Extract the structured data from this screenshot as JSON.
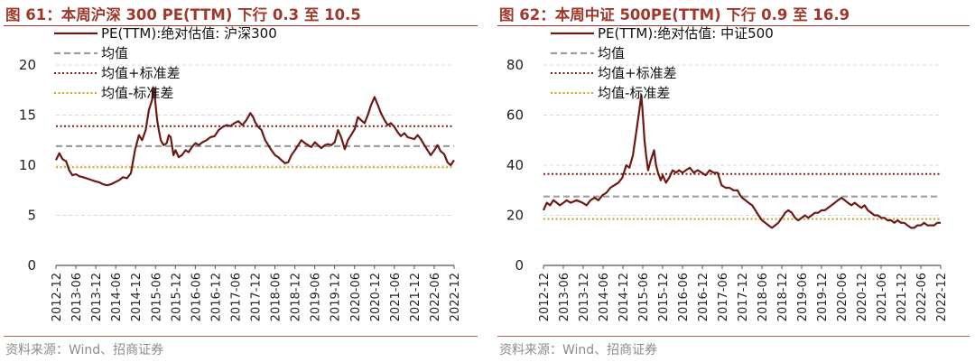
{
  "colors": {
    "title": "#a0392c",
    "pe_line": "#6b1a14",
    "mean": "#9e9e9e",
    "mean_plus": "#7b1e18",
    "mean_minus": "#c9a227",
    "source": "#8c8c8c"
  },
  "panels": [
    {
      "title": "图 61：本周沪深 300 PE(TTM) 下行 0.3 至 10.5",
      "source": "资料来源：Wind、招商证券"
    },
    {
      "title": "图 62：本周中证 500PE(TTM) 下行 0.9 至 16.9",
      "source": "资料来源：Wind、招商证券"
    }
  ],
  "chart_data": [
    {
      "type": "line",
      "title": "图 61：本周沪深 300 PE(TTM) 下行 0.3 至 10.5",
      "xlabel": "",
      "ylabel": "",
      "x_tick_labels": [
        "2012-12",
        "2013-06",
        "2013-12",
        "2014-06",
        "2014-12",
        "2015-06",
        "2015-12",
        "2016-06",
        "2016-12",
        "2017-06",
        "2017-12",
        "2018-06",
        "2018-12",
        "2019-06",
        "2019-12",
        "2020-06",
        "2020-12",
        "2021-06",
        "2021-12",
        "2022-06",
        "2022-12"
      ],
      "y_ticks": [
        0,
        5,
        10,
        15,
        20
      ],
      "ylim": [
        0,
        20
      ],
      "xlim": [
        2012.917,
        2022.917
      ],
      "grid": "horizontal dashed",
      "legend_position": "top",
      "series": [
        {
          "name": "PE(TTM):绝对估值: 沪深300",
          "style": "solid",
          "x": [
            2012.917,
            2013.0,
            2013.083,
            2013.17,
            2013.25,
            2013.33,
            2013.42,
            2013.5,
            2013.6,
            2013.75,
            2013.9,
            2014.0,
            2014.1,
            2014.2,
            2014.3,
            2014.4,
            2014.5,
            2014.6,
            2014.7,
            2014.8,
            2014.9,
            2015.0,
            2015.08,
            2015.17,
            2015.25,
            2015.33,
            2015.38,
            2015.42,
            2015.46,
            2015.5,
            2015.55,
            2015.62,
            2015.7,
            2015.75,
            2015.8,
            2015.87,
            2015.92,
            2016.0,
            2016.08,
            2016.17,
            2016.25,
            2016.33,
            2016.42,
            2016.5,
            2016.6,
            2016.7,
            2016.8,
            2016.9,
            2017.0,
            2017.1,
            2017.2,
            2017.3,
            2017.4,
            2017.5,
            2017.6,
            2017.7,
            2017.8,
            2017.87,
            2017.92,
            2018.0,
            2018.08,
            2018.17,
            2018.25,
            2018.33,
            2018.42,
            2018.5,
            2018.58,
            2018.67,
            2018.75,
            2018.83,
            2018.92,
            2019.0,
            2019.08,
            2019.17,
            2019.25,
            2019.33,
            2019.42,
            2019.5,
            2019.58,
            2019.67,
            2019.75,
            2019.83,
            2019.92,
            2020.0,
            2020.08,
            2020.17,
            2020.25,
            2020.33,
            2020.42,
            2020.5,
            2020.58,
            2020.67,
            2020.75,
            2020.83,
            2020.92,
            2021.0,
            2021.08,
            2021.17,
            2021.25,
            2021.33,
            2021.42,
            2021.5,
            2021.58,
            2021.67,
            2021.75,
            2021.83,
            2021.92,
            2022.0,
            2022.08,
            2022.17,
            2022.25,
            2022.33,
            2022.42,
            2022.5,
            2022.58,
            2022.67,
            2022.75,
            2022.83,
            2022.917
          ],
          "values": [
            10.5,
            11.2,
            10.6,
            10.4,
            9.5,
            9.0,
            9.1,
            8.9,
            8.8,
            8.6,
            8.4,
            8.3,
            8.1,
            8.0,
            8.1,
            8.3,
            8.5,
            8.8,
            8.7,
            9.2,
            11.5,
            13.0,
            12.5,
            13.5,
            15.5,
            16.5,
            17.7,
            16.0,
            14.5,
            13.5,
            12.5,
            12.0,
            12.2,
            13.0,
            12.8,
            11.0,
            11.5,
            10.8,
            11.0,
            11.5,
            11.3,
            11.8,
            12.2,
            12.0,
            12.3,
            12.5,
            12.8,
            12.9,
            13.5,
            13.8,
            14.0,
            13.9,
            14.2,
            14.4,
            14.0,
            14.5,
            15.2,
            14.8,
            14.3,
            13.8,
            13.5,
            12.5,
            12.0,
            11.5,
            11.0,
            10.8,
            10.5,
            10.2,
            10.3,
            11.0,
            11.5,
            12.0,
            12.5,
            12.2,
            12.0,
            11.8,
            12.3,
            12.0,
            11.7,
            12.0,
            12.1,
            12.0,
            12.3,
            13.5,
            12.8,
            11.6,
            12.5,
            13.0,
            13.6,
            14.8,
            14.5,
            14.2,
            15.0,
            16.0,
            16.8,
            16.0,
            15.2,
            14.5,
            14.0,
            14.2,
            13.8,
            13.3,
            12.9,
            13.2,
            12.8,
            12.7,
            12.6,
            13.0,
            12.6,
            12.0,
            11.5,
            11.0,
            11.5,
            12.0,
            11.4,
            11.1,
            10.3,
            10.0,
            10.5
          ]
        },
        {
          "name": "均值",
          "style": "dashed",
          "values": [
            11.9
          ]
        },
        {
          "name": "均值+标准差",
          "style": "dotted",
          "values": [
            13.9
          ]
        },
        {
          "name": "均值-标准差",
          "style": "dotted",
          "values": [
            9.8
          ]
        }
      ]
    },
    {
      "type": "line",
      "title": "图 62：本周中证 500PE(TTM) 下行 0.9 至 16.9",
      "xlabel": "",
      "ylabel": "",
      "x_tick_labels": [
        "2012-12",
        "2013-06",
        "2013-12",
        "2014-06",
        "2014-12",
        "2015-06",
        "2015-12",
        "2016-06",
        "2016-12",
        "2017-06",
        "2017-12",
        "2018-06",
        "2018-12",
        "2019-06",
        "2019-12",
        "2020-06",
        "2020-12",
        "2021-06",
        "2021-12",
        "2022-06",
        "2022-12"
      ],
      "y_ticks": [
        0,
        20,
        40,
        60,
        80
      ],
      "ylim": [
        0,
        80
      ],
      "xlim": [
        2012.917,
        2022.917
      ],
      "grid": "horizontal dashed",
      "legend_position": "top",
      "series": [
        {
          "name": "PE(TTM):绝对估值: 中证500",
          "style": "solid",
          "x": [
            2012.917,
            2013.0,
            2013.083,
            2013.17,
            2013.25,
            2013.33,
            2013.42,
            2013.5,
            2013.6,
            2013.75,
            2013.9,
            2014.0,
            2014.1,
            2014.2,
            2014.3,
            2014.4,
            2014.5,
            2014.6,
            2014.7,
            2014.8,
            2014.9,
            2015.0,
            2015.08,
            2015.17,
            2015.25,
            2015.33,
            2015.38,
            2015.42,
            2015.46,
            2015.5,
            2015.55,
            2015.62,
            2015.7,
            2015.75,
            2015.8,
            2015.87,
            2015.92,
            2016.0,
            2016.08,
            2016.17,
            2016.25,
            2016.33,
            2016.42,
            2016.5,
            2016.6,
            2016.7,
            2016.8,
            2016.9,
            2017.0,
            2017.1,
            2017.2,
            2017.3,
            2017.4,
            2017.5,
            2017.6,
            2017.7,
            2017.8,
            2017.87,
            2017.92,
            2018.0,
            2018.08,
            2018.17,
            2018.25,
            2018.33,
            2018.42,
            2018.5,
            2018.58,
            2018.67,
            2018.75,
            2018.83,
            2018.92,
            2019.0,
            2019.08,
            2019.17,
            2019.25,
            2019.33,
            2019.42,
            2019.5,
            2019.58,
            2019.67,
            2019.75,
            2019.83,
            2019.92,
            2020.0,
            2020.08,
            2020.17,
            2020.25,
            2020.33,
            2020.42,
            2020.5,
            2020.58,
            2020.67,
            2020.75,
            2020.83,
            2020.92,
            2021.0,
            2021.08,
            2021.17,
            2021.25,
            2021.33,
            2021.42,
            2021.5,
            2021.58,
            2021.67,
            2021.75,
            2021.83,
            2021.92,
            2022.0,
            2022.08,
            2022.17,
            2022.25,
            2022.33,
            2022.42,
            2022.5,
            2022.58,
            2022.67,
            2022.75,
            2022.83,
            2022.917
          ],
          "values": [
            22,
            25,
            24,
            26,
            25,
            24,
            25,
            26,
            25,
            26,
            25,
            24,
            26,
            27,
            26,
            28,
            29,
            31,
            32,
            33,
            35,
            40,
            39,
            44,
            53,
            62,
            68,
            60,
            50,
            44,
            38,
            42,
            46,
            40,
            37,
            34,
            36,
            33,
            35,
            38,
            37,
            38,
            37,
            38,
            39,
            37,
            38,
            37,
            36,
            38,
            37,
            37,
            32,
            31,
            31,
            30,
            30,
            28,
            27,
            26,
            25,
            24,
            22,
            20,
            18,
            17,
            16,
            15,
            16,
            17,
            19,
            21,
            22,
            21,
            19,
            18,
            19,
            20,
            19,
            20,
            21,
            21,
            22,
            22,
            23,
            24,
            25,
            26,
            27,
            26,
            25,
            24,
            25,
            24,
            23,
            24,
            22,
            21,
            20,
            20,
            19,
            19,
            18,
            18,
            17,
            18,
            17,
            17,
            16,
            15,
            15,
            16,
            16,
            17,
            16,
            16,
            16,
            17,
            17
          ]
        },
        {
          "name": "均值",
          "style": "dashed",
          "values": [
            27.5
          ]
        },
        {
          "name": "均值+标准差",
          "style": "dotted",
          "values": [
            36.5
          ]
        },
        {
          "name": "均值-标准差",
          "style": "dotted",
          "values": [
            18.5
          ]
        }
      ]
    }
  ]
}
